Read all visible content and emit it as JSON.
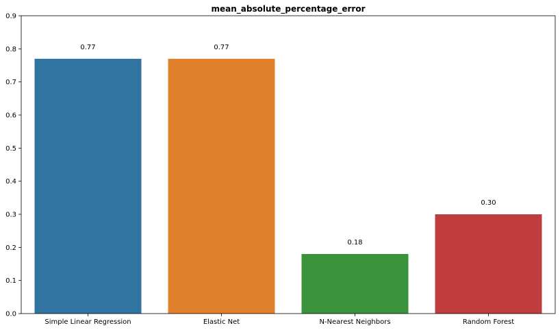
{
  "chart_data": {
    "type": "bar",
    "title": "mean_absolute_percentage_error",
    "xlabel": "",
    "ylabel": "",
    "categories": [
      "Simple Linear Regression",
      "Elastic Net",
      "N-Nearest Neighbors",
      "Random Forest"
    ],
    "values": [
      0.77,
      0.77,
      0.18,
      0.3
    ],
    "value_labels": [
      "0.77",
      "0.77",
      "0.18",
      "0.30"
    ],
    "colors": [
      "#3274a1",
      "#e1812c",
      "#3a923a",
      "#c03d3e"
    ],
    "ylim": [
      0,
      0.9
    ],
    "yticks": [
      0.0,
      0.1,
      0.2,
      0.3,
      0.4,
      0.5,
      0.6,
      0.7,
      0.8,
      0.9
    ],
    "ytick_labels": [
      "0.0",
      "0.1",
      "0.2",
      "0.3",
      "0.4",
      "0.5",
      "0.6",
      "0.7",
      "0.8",
      "0.9"
    ],
    "grid": false,
    "legend": "none"
  }
}
